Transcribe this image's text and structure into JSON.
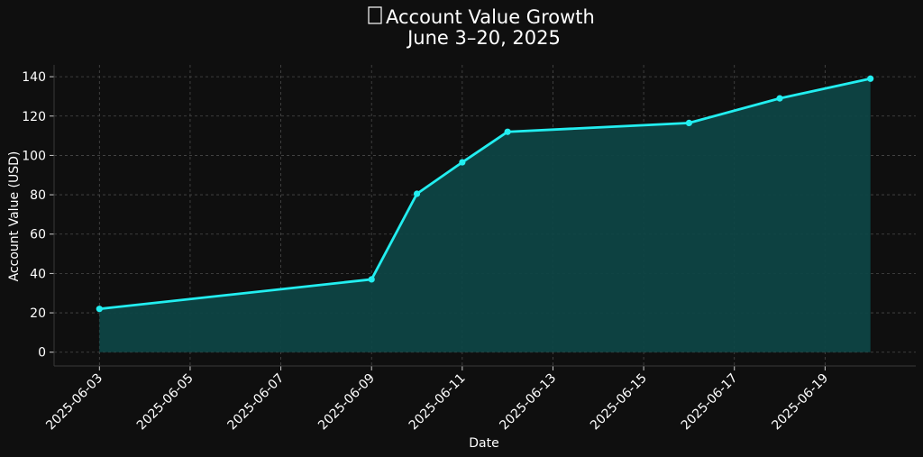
{
  "chart_data": {
    "type": "area",
    "title": "Account Value Growth",
    "subtitle": "June 3–20, 2025",
    "title_icon": "chart-increasing-icon",
    "xlabel": "Date",
    "ylabel": "Account Value (USD)",
    "x_type": "date",
    "xlim": [
      "2025-06-02",
      "2025-06-21"
    ],
    "ylim": [
      -7,
      146
    ],
    "x_ticks": [
      "2025-06-03",
      "2025-06-05",
      "2025-06-07",
      "2025-06-09",
      "2025-06-11",
      "2025-06-13",
      "2025-06-15",
      "2025-06-17",
      "2025-06-19"
    ],
    "y_ticks": [
      0,
      20,
      40,
      60,
      80,
      100,
      120,
      140
    ],
    "grid": true,
    "line_color": "#22eef0",
    "fill_color": "#0e4444",
    "background_color": "#0f0f0f",
    "series": [
      {
        "x": [
          "2025-06-03",
          "2025-06-09",
          "2025-06-10",
          "2025-06-11",
          "2025-06-12",
          "2025-06-16",
          "2025-06-18",
          "2025-06-20"
        ],
        "values": [
          22,
          37,
          80.5,
          96.5,
          112,
          116.5,
          129,
          139
        ]
      }
    ]
  }
}
